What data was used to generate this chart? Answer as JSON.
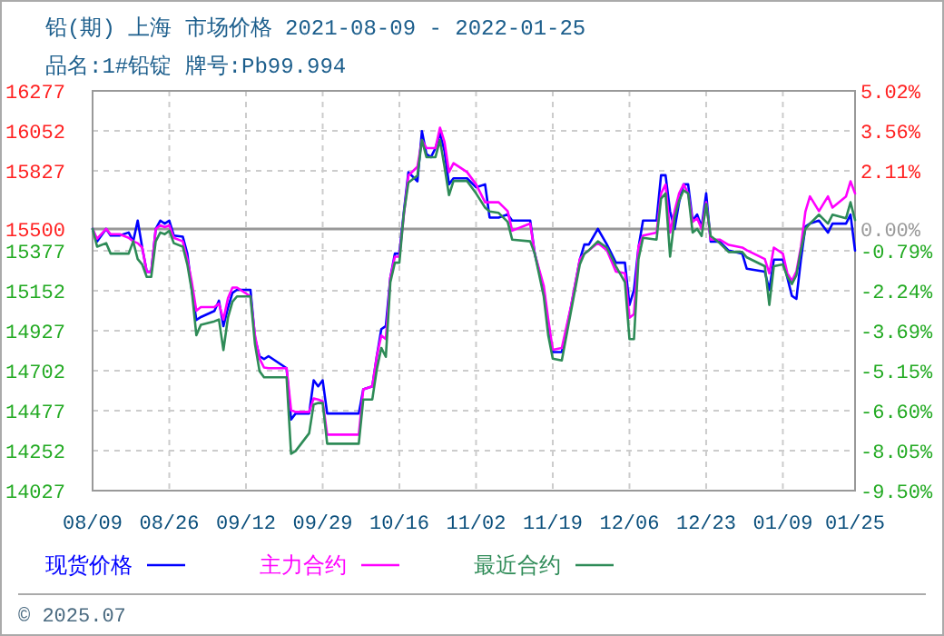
{
  "chart_data": {
    "type": "line",
    "title": "铅(期) 上海 市场价格 2021-08-09 - 2022-01-25",
    "subtitle": "品名:1#铅锭 牌号:Pb99.994",
    "x": [
      "2021-08-09",
      "2021-08-10",
      "2021-08-12",
      "2021-08-13",
      "2021-08-15",
      "2021-08-17",
      "2021-08-18",
      "2021-08-19",
      "2021-08-20",
      "2021-08-21",
      "2021-08-22",
      "2021-08-23",
      "2021-08-24",
      "2021-08-25",
      "2021-08-26",
      "2021-08-27",
      "2021-08-29",
      "2021-08-30",
      "2021-08-31",
      "2021-09-01",
      "2021-09-02",
      "2021-09-05",
      "2021-09-06",
      "2021-09-07",
      "2021-09-08",
      "2021-09-09",
      "2021-09-10",
      "2021-09-13",
      "2021-09-14",
      "2021-09-15",
      "2021-09-16",
      "2021-09-17",
      "2021-09-21",
      "2021-09-22",
      "2021-09-23",
      "2021-09-26",
      "2021-09-27",
      "2021-09-28",
      "2021-09-29",
      "2021-09-30",
      "2021-10-07",
      "2021-10-08",
      "2021-10-10",
      "2021-10-11",
      "2021-10-12",
      "2021-10-13",
      "2021-10-14",
      "2021-10-15",
      "2021-10-16",
      "2021-10-17",
      "2021-10-18",
      "2021-10-20",
      "2021-10-21",
      "2021-10-22",
      "2021-10-23",
      "2021-10-24",
      "2021-10-25",
      "2021-10-26",
      "2021-10-27",
      "2021-10-28",
      "2021-10-31",
      "2021-11-02",
      "2021-11-04",
      "2021-11-05",
      "2021-11-07",
      "2021-11-09",
      "2021-11-10",
      "2021-11-14",
      "2021-11-15",
      "2021-11-17",
      "2021-11-18",
      "2021-11-19",
      "2021-11-21",
      "2021-11-23",
      "2021-11-25",
      "2021-11-26",
      "2021-11-27",
      "2021-11-29",
      "2021-12-01",
      "2021-12-03",
      "2021-12-05",
      "2021-12-06",
      "2021-12-07",
      "2021-12-08",
      "2021-12-09",
      "2021-12-12",
      "2021-12-13",
      "2021-12-14",
      "2021-12-15",
      "2021-12-16",
      "2021-12-17",
      "2021-12-18",
      "2021-12-19",
      "2021-12-20",
      "2021-12-21",
      "2021-12-22",
      "2021-12-23",
      "2021-12-24",
      "2021-12-26",
      "2021-12-28",
      "2021-12-31",
      "2022-01-01",
      "2022-01-05",
      "2022-01-06",
      "2022-01-07",
      "2022-01-09",
      "2022-01-10",
      "2022-01-11",
      "2022-01-12",
      "2022-01-13",
      "2022-01-14",
      "2022-01-15",
      "2022-01-17",
      "2022-01-19",
      "2022-01-20",
      "2022-01-23",
      "2022-01-24",
      "2022-01-25"
    ],
    "series": [
      {
        "name": "现货价格",
        "color": "#0000ff",
        "values": [
          15500,
          15429,
          15500,
          15463,
          15463,
          15480,
          15429,
          15547,
          15395,
          15259,
          15259,
          15500,
          15547,
          15530,
          15547,
          15463,
          15456,
          15361,
          15157,
          14987,
          15004,
          15038,
          15096,
          14953,
          15055,
          15140,
          15157,
          15157,
          14885,
          14784,
          14767,
          14784,
          14716,
          14427,
          14461,
          14461,
          14648,
          14614,
          14648,
          14461,
          14461,
          14597,
          14614,
          14784,
          14936,
          14953,
          15225,
          15361,
          15361,
          15598,
          15819,
          15768,
          16050,
          15921,
          15904,
          15955,
          16039,
          15938,
          15751,
          15785,
          15785,
          15734,
          15751,
          15564,
          15564,
          15581,
          15547,
          15547,
          15361,
          15157,
          14953,
          14807,
          14807,
          15055,
          15327,
          15412,
          15412,
          15500,
          15412,
          15310,
          15310,
          15072,
          15157,
          15395,
          15547,
          15547,
          15802,
          15802,
          15598,
          15500,
          15649,
          15751,
          15751,
          15547,
          15581,
          15513,
          15700,
          15429,
          15429,
          15378,
          15361,
          15276,
          15259,
          15157,
          15327,
          15327,
          15225,
          15123,
          15106,
          15327,
          15513,
          15530,
          15547,
          15479,
          15530,
          15530,
          15581,
          15378
        ]
      },
      {
        "name": "主力合约",
        "color": "#ff00ff",
        "values": [
          15500,
          15445,
          15500,
          15470,
          15470,
          15450,
          15430,
          15420,
          15395,
          15259,
          15259,
          15500,
          15520,
          15510,
          15520,
          15450,
          15430,
          15330,
          15200,
          15040,
          15060,
          15060,
          15080,
          14990,
          15110,
          15170,
          15170,
          15120,
          14900,
          14770,
          14720,
          14716,
          14716,
          14480,
          14470,
          14470,
          14546,
          14540,
          14530,
          14342,
          14342,
          14597,
          14614,
          14784,
          14900,
          14880,
          15225,
          15344,
          15344,
          15580,
          15800,
          15850,
          16000,
          15955,
          15955,
          15955,
          16070,
          15990,
          15820,
          15870,
          15820,
          15751,
          15650,
          15650,
          15650,
          15600,
          15490,
          15530,
          15361,
          15180,
          14990,
          14820,
          14830,
          15060,
          15330,
          15360,
          15380,
          15420,
          15380,
          15260,
          15250,
          15000,
          15020,
          15400,
          15463,
          15479,
          15700,
          15750,
          15480,
          15600,
          15700,
          15751,
          15700,
          15540,
          15560,
          15500,
          15650,
          15440,
          15440,
          15410,
          15395,
          15380,
          15330,
          15250,
          15395,
          15361,
          15250,
          15208,
          15260,
          15400,
          15598,
          15683,
          15600,
          15683,
          15620,
          15683,
          15768,
          15700
        ]
      },
      {
        "name": "最近合约",
        "color": "#2e8b57",
        "values": [
          15500,
          15400,
          15420,
          15361,
          15361,
          15361,
          15430,
          15330,
          15300,
          15230,
          15230,
          15430,
          15480,
          15470,
          15490,
          15420,
          15400,
          15300,
          15150,
          14902,
          14960,
          14980,
          14990,
          14818,
          15000,
          15090,
          15120,
          15120,
          14850,
          14700,
          14665,
          14665,
          14665,
          14234,
          14250,
          14350,
          14512,
          14520,
          14520,
          14291,
          14291,
          14540,
          14540,
          14710,
          14830,
          14780,
          15200,
          15310,
          15310,
          15590,
          15760,
          15800,
          16000,
          15904,
          15904,
          15904,
          16000,
          15850,
          15690,
          15770,
          15770,
          15700,
          15620,
          15598,
          15590,
          15540,
          15440,
          15430,
          15361,
          15120,
          14900,
          14770,
          14760,
          15030,
          15300,
          15360,
          15380,
          15430,
          15395,
          15290,
          15200,
          14880,
          14880,
          15330,
          15450,
          15440,
          15670,
          15700,
          15344,
          15560,
          15660,
          15717,
          15700,
          15480,
          15500,
          15460,
          15640,
          15460,
          15420,
          15370,
          15370,
          15340,
          15290,
          15072,
          15290,
          15300,
          15230,
          15190,
          15240,
          15380,
          15500,
          15530,
          15580,
          15530,
          15580,
          15560,
          15650,
          15550
        ]
      }
    ],
    "xlim": [
      "2021-08-09",
      "2022-01-25"
    ],
    "xticks": [
      {
        "value": "2021-08-09",
        "label": "08/09"
      },
      {
        "value": "2021-08-26",
        "label": "08/26"
      },
      {
        "value": "2021-09-12",
        "label": "09/12"
      },
      {
        "value": "2021-09-29",
        "label": "09/29"
      },
      {
        "value": "2021-10-16",
        "label": "10/16"
      },
      {
        "value": "2021-11-02",
        "label": "11/02"
      },
      {
        "value": "2021-11-19",
        "label": "11/19"
      },
      {
        "value": "2021-12-06",
        "label": "12/06"
      },
      {
        "value": "2021-12-23",
        "label": "12/23"
      },
      {
        "value": "2022-01-09",
        "label": "01/09"
      },
      {
        "value": "2022-01-25",
        "label": "01/25"
      }
    ],
    "ylim": [
      14027,
      16277
    ],
    "yticks": [
      16277,
      16052,
      15827,
      15500,
      15377,
      15152,
      14927,
      14702,
      14477,
      14252,
      14027
    ],
    "y2lim": [
      -9.5,
      5.02
    ],
    "y2ticks": [
      {
        "value": 5.02,
        "label": "5.02%"
      },
      {
        "value": 3.56,
        "label": "3.56%"
      },
      {
        "value": 2.11,
        "label": "2.11%"
      },
      {
        "value": 0,
        "label": "0.00%"
      },
      {
        "value": -0.79,
        "label": "-0.79%"
      },
      {
        "value": -2.24,
        "label": "-2.24%"
      },
      {
        "value": -3.69,
        "label": "-3.69%"
      },
      {
        "value": -5.15,
        "label": "-5.15%"
      },
      {
        "value": -6.6,
        "label": "-6.60%"
      },
      {
        "value": -8.05,
        "label": "-8.05%"
      },
      {
        "value": -9.5,
        "label": "-9.50%"
      }
    ],
    "ref_lines": [
      {
        "axis": "y",
        "value": 15500,
        "color": "#999999"
      }
    ],
    "grid": true,
    "legend": "bottom",
    "marker": "none",
    "line_style": "solid",
    "annotations": [
      "© 2025.07"
    ]
  }
}
